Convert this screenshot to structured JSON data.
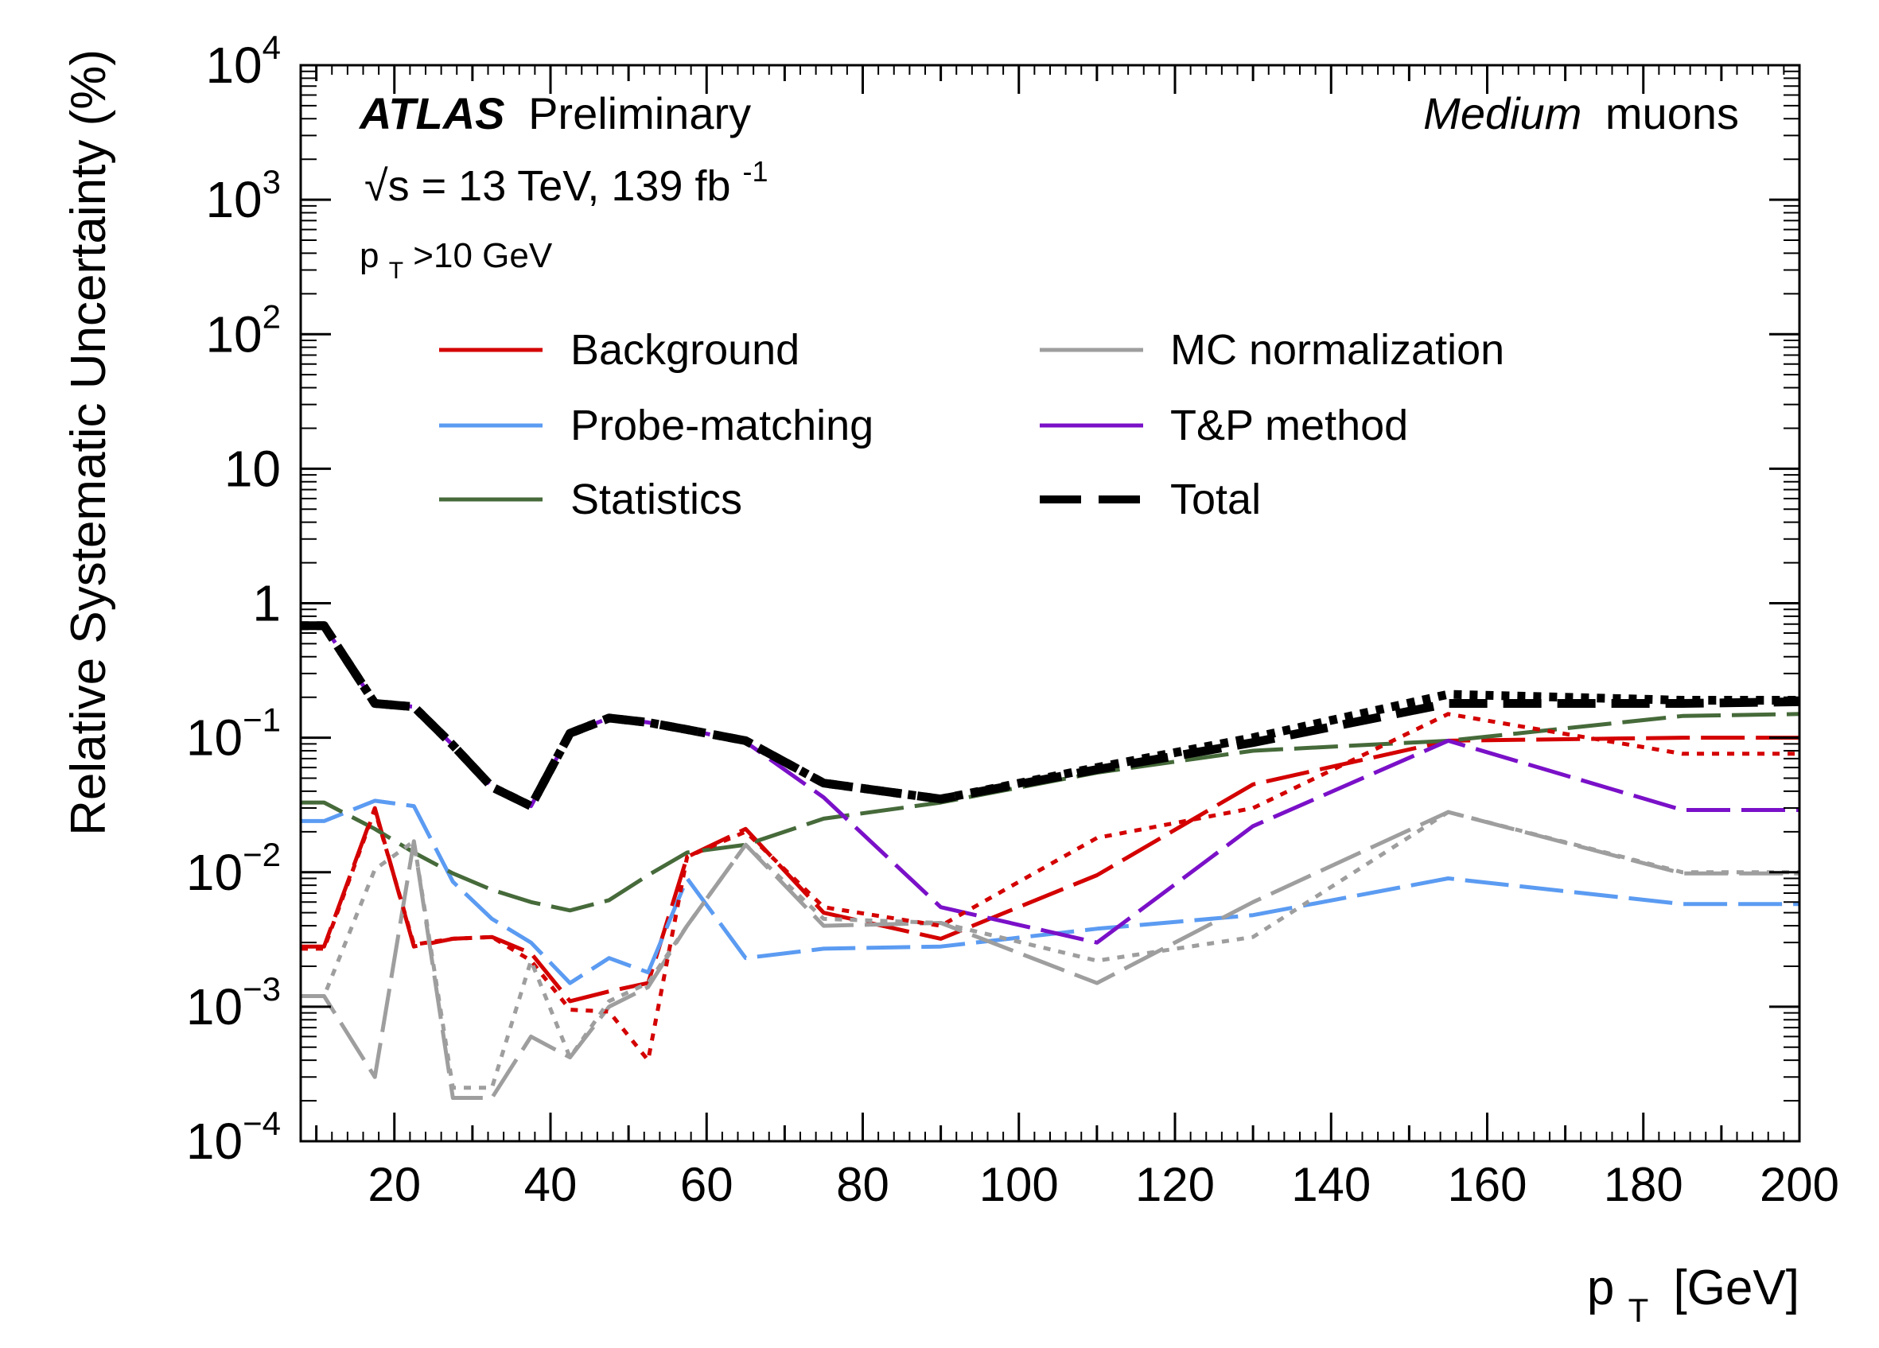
{
  "chart_data": {
    "type": "line",
    "ylabel": "Relative Systematic Uncertainty (%)",
    "xlabel_main": "p",
    "xlabel_sub": "T",
    "xlabel_unit": "[GeV]",
    "yscale": "log",
    "xlim": [
      8,
      200
    ],
    "ylim": [
      0.0001,
      10000
    ],
    "x_ticks": [
      20,
      40,
      60,
      80,
      100,
      120,
      140,
      160,
      180,
      200
    ],
    "y_tick_labels": [
      {
        "value": 10000,
        "base": "10",
        "exp": "4"
      },
      {
        "value": 1000,
        "base": "10",
        "exp": "3"
      },
      {
        "value": 100,
        "base": "10",
        "exp": "2"
      },
      {
        "value": 10,
        "base": "10",
        "exp": ""
      },
      {
        "value": 1,
        "base": "1",
        "exp": ""
      },
      {
        "value": 0.1,
        "base": "10",
        "exp": "−1"
      },
      {
        "value": 0.01,
        "base": "10",
        "exp": "−2"
      },
      {
        "value": 0.001,
        "base": "10",
        "exp": "−3"
      },
      {
        "value": 0.0001,
        "base": "10",
        "exp": "−4"
      }
    ],
    "annotations": {
      "atlas_bold": "ATLAS",
      "atlas_rest": "Preliminary",
      "energy_sqrt": "√s = 13 TeV, 139 fb",
      "energy_sup": "-1",
      "pt_main": "p",
      "pt_sub": "T",
      "pt_rest": ">10 GeV",
      "medium_italic": "Medium",
      "medium_rest": "muons"
    },
    "legend": [
      {
        "label": "Background",
        "color": "#d40000",
        "style": "solid"
      },
      {
        "label": "Probe-matching",
        "color": "#5b9bf2",
        "style": "solid"
      },
      {
        "label": "Statistics",
        "color": "#466a3a",
        "style": "solid"
      },
      {
        "label": "MC normalization",
        "color": "#9e9e9e",
        "style": "solid"
      },
      {
        "label": "T&P method",
        "color": "#7a10c8",
        "style": "solid"
      },
      {
        "label": "Total",
        "color": "#000000",
        "style": "dashed"
      }
    ],
    "series": [
      {
        "name": "Background",
        "color": "#d40000",
        "dash": "longdash",
        "x": [
          8,
          11,
          17.5,
          22.5,
          27.5,
          32.5,
          37.5,
          42.5,
          47.5,
          52.5,
          57.5,
          65,
          75,
          90,
          110,
          130,
          155,
          185,
          200
        ],
        "y": [
          0.0028,
          0.0028,
          0.03,
          0.0028,
          0.0032,
          0.0033,
          0.0025,
          0.0011,
          0.0013,
          0.0015,
          0.013,
          0.021,
          0.005,
          0.0032,
          0.0095,
          0.045,
          0.095,
          0.1,
          0.1
        ]
      },
      {
        "name": "Probe-matching",
        "color": "#5b9bf2",
        "dash": "longdash",
        "x": [
          8,
          11,
          17.5,
          22.5,
          27.5,
          32.5,
          37.5,
          42.5,
          47.5,
          52.5,
          57.5,
          65,
          75,
          90,
          110,
          130,
          155,
          185,
          200
        ],
        "y": [
          0.024,
          0.024,
          0.034,
          0.031,
          0.0085,
          0.0045,
          0.003,
          0.0015,
          0.0023,
          0.0018,
          0.009,
          0.0023,
          0.0027,
          0.0028,
          0.0038,
          0.0048,
          0.009,
          0.0058,
          0.0058
        ]
      },
      {
        "name": "Statistics",
        "color": "#466a3a",
        "dash": "longdash",
        "x": [
          8,
          11,
          17.5,
          22.5,
          27.5,
          32.5,
          37.5,
          42.5,
          47.5,
          52.5,
          57.5,
          65,
          75,
          90,
          110,
          130,
          155,
          185,
          200
        ],
        "y": [
          0.033,
          0.033,
          0.021,
          0.014,
          0.0098,
          0.0074,
          0.006,
          0.0052,
          0.0062,
          0.0095,
          0.014,
          0.016,
          0.025,
          0.033,
          0.055,
          0.08,
          0.095,
          0.145,
          0.15
        ]
      },
      {
        "name": "MC normalization",
        "color": "#9e9e9e",
        "dash": "longdash",
        "x": [
          8,
          11,
          17.5,
          22.5,
          27.5,
          32.5,
          37.5,
          42.5,
          47.5,
          52.5,
          57.5,
          65,
          75,
          90,
          110,
          130,
          155,
          185,
          200
        ],
        "y": [
          0.0012,
          0.0012,
          0.0003,
          0.017,
          0.00021,
          0.00021,
          0.0006,
          0.00042,
          0.001,
          0.0014,
          0.004,
          0.016,
          0.004,
          0.0042,
          0.0015,
          0.006,
          0.028,
          0.0098,
          0.0098
        ]
      },
      {
        "name": "T&P method",
        "color": "#7a10c8",
        "dash": "longdash",
        "x": [
          8,
          11,
          17.5,
          22.5,
          27.5,
          32.5,
          37.5,
          42.5,
          47.5,
          52.5,
          57.5,
          65,
          75,
          90,
          110,
          130,
          155,
          185,
          200
        ],
        "y": [
          0.68,
          0.68,
          0.18,
          0.17,
          0.088,
          0.043,
          0.031,
          0.108,
          0.14,
          0.13,
          0.115,
          0.093,
          0.036,
          0.0055,
          0.003,
          0.022,
          0.095,
          0.029,
          0.029
        ]
      },
      {
        "name": "Background (total)",
        "color": "#d40000",
        "dash": "dotted",
        "x": [
          8,
          11,
          17.5,
          22.5,
          27.5,
          32.5,
          37.5,
          42.5,
          47.5,
          52.5,
          57.5,
          65,
          75,
          90,
          110,
          130,
          155,
          185,
          200
        ],
        "y": [
          0.0027,
          0.0027,
          0.029,
          0.0029,
          0.0032,
          0.0033,
          0.0022,
          0.00095,
          0.00092,
          0.0004,
          0.013,
          0.02,
          0.0055,
          0.004,
          0.018,
          0.03,
          0.15,
          0.076,
          0.076
        ]
      },
      {
        "name": "MC normalization (total)",
        "color": "#9e9e9e",
        "dash": "dotted",
        "x": [
          8,
          11,
          17.5,
          22.5,
          27.5,
          32.5,
          37.5,
          42.5,
          47.5,
          52.5,
          57.5,
          65,
          75,
          90,
          110,
          130,
          155,
          185,
          200
        ],
        "y": [
          0.0012,
          0.0012,
          0.0105,
          0.017,
          0.00025,
          0.00025,
          0.0022,
          0.00042,
          0.0011,
          0.0015,
          0.004,
          0.016,
          0.0045,
          0.0042,
          0.0022,
          0.0033,
          0.028,
          0.01,
          0.01
        ]
      },
      {
        "name": "Total",
        "color": "#000000",
        "dash": "dashed-thick",
        "x": [
          8,
          11,
          17.5,
          22.5,
          27.5,
          32.5,
          37.5,
          42.5,
          47.5,
          52.5,
          57.5,
          65,
          75,
          90,
          110,
          130,
          155,
          185,
          200
        ],
        "y": [
          0.68,
          0.68,
          0.18,
          0.17,
          0.088,
          0.043,
          0.031,
          0.108,
          0.14,
          0.13,
          0.115,
          0.095,
          0.046,
          0.035,
          0.058,
          0.092,
          0.18,
          0.18,
          0.185
        ]
      },
      {
        "name": "Total (dotted)",
        "color": "#000000",
        "dash": "dotted-thick",
        "x": [
          8,
          11,
          17.5,
          22.5,
          27.5,
          32.5,
          37.5,
          42.5,
          47.5,
          52.5,
          57.5,
          65,
          75,
          90,
          110,
          130,
          155,
          185,
          200
        ],
        "y": [
          0.68,
          0.68,
          0.18,
          0.17,
          0.088,
          0.043,
          0.031,
          0.108,
          0.14,
          0.13,
          0.115,
          0.095,
          0.046,
          0.035,
          0.06,
          0.1,
          0.21,
          0.19,
          0.19
        ]
      }
    ]
  }
}
